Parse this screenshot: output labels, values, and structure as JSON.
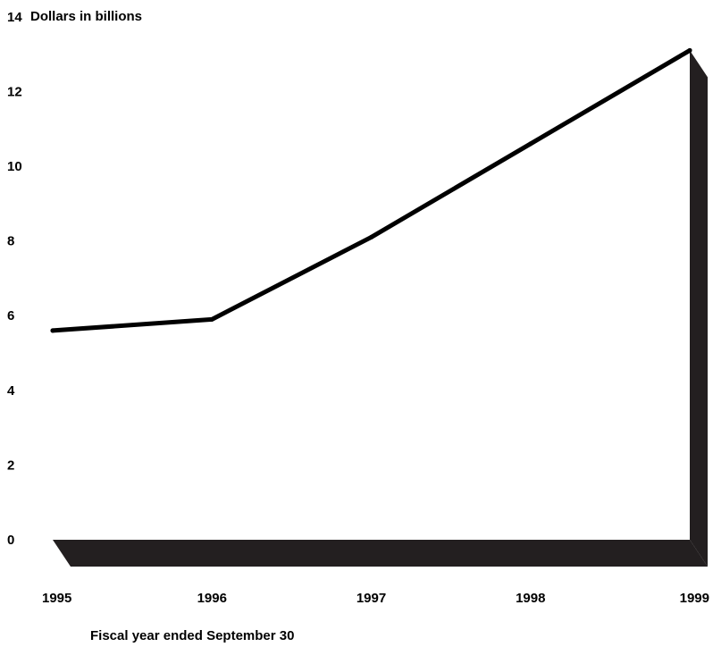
{
  "chart_data": {
    "type": "line",
    "ylabel": "Dollars in billions",
    "xlabel": "Fiscal year ended September 30",
    "x": [
      "1995",
      "1996",
      "1997",
      "1998",
      "1999"
    ],
    "series": [
      {
        "values": [
          5.6,
          5.9,
          8.1,
          10.6,
          13.1
        ]
      }
    ],
    "yticks": [
      "0",
      "2",
      "4",
      "6",
      "8",
      "10",
      "12",
      "14"
    ],
    "ylim": [
      0,
      14
    ],
    "grid": false,
    "legend": "none",
    "colors": {
      "line": "#000000",
      "shadow": "#231f20",
      "text": "#000000"
    }
  }
}
